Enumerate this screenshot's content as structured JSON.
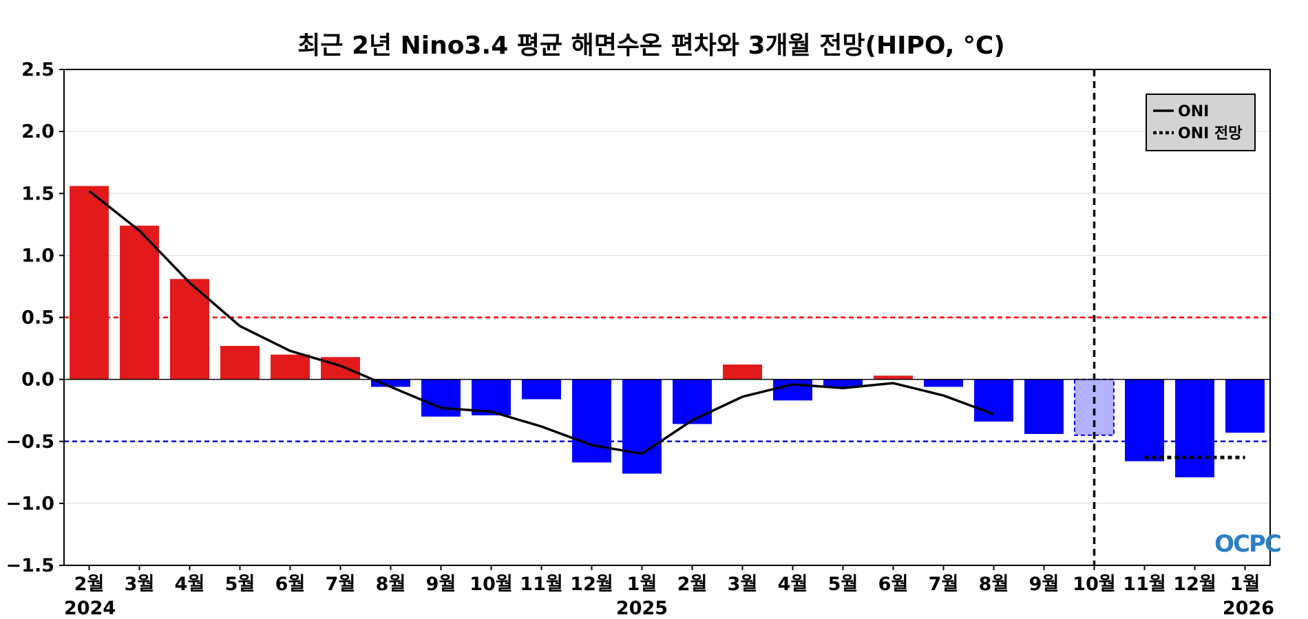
{
  "chart_data": {
    "type": "bar",
    "title": "최근 2년 Nino3.4 평균 해면수온 편차와 3개월 전망(HIPO, °C)",
    "xlabel": "",
    "ylabel": "",
    "ylim": [
      -1.5,
      2.5
    ],
    "yticks": [
      2.5,
      2.0,
      1.5,
      1.0,
      0.5,
      0.0,
      -0.5,
      -1.0,
      -1.5
    ],
    "ytick_labels": [
      "2.5",
      "2.0",
      "1.5",
      "1.0",
      "0.5",
      "0.0",
      "−0.5",
      "−1.0",
      "−1.5"
    ],
    "categories": [
      "2월",
      "3월",
      "4월",
      "5월",
      "6월",
      "7월",
      "8월",
      "9월",
      "10월",
      "11월",
      "12월",
      "1월",
      "2월",
      "3월",
      "4월",
      "5월",
      "6월",
      "7월",
      "8월",
      "9월",
      "10월",
      "11월",
      "12월",
      "1월"
    ],
    "years": [
      {
        "label": "2024",
        "category_index": 0
      },
      {
        "label": "2025",
        "category_index": 11
      },
      {
        "label": "2026",
        "category_index": 23
      }
    ],
    "values": [
      1.56,
      1.24,
      0.81,
      0.27,
      0.2,
      0.18,
      -0.06,
      -0.3,
      -0.29,
      -0.16,
      -0.67,
      -0.76,
      -0.36,
      0.12,
      -0.17,
      -0.06,
      0.03,
      -0.06,
      -0.34,
      -0.44,
      -0.45,
      -0.66,
      -0.79,
      -0.43
    ],
    "highlight_index": 20,
    "oni": {
      "name": "ONI",
      "values": [
        1.52,
        1.2,
        0.78,
        0.43,
        0.23,
        0.11,
        -0.06,
        -0.23,
        -0.26,
        -0.38,
        -0.53,
        -0.6,
        -0.33,
        -0.14,
        -0.04,
        -0.07,
        -0.03,
        -0.13,
        -0.28
      ]
    },
    "oni_forecast": {
      "name": "ONI 전망",
      "start_index": 21,
      "end_index": 23,
      "value": -0.63
    },
    "thresholds": {
      "upper": 0.5,
      "lower": -0.5
    },
    "forecast_divider_index": 20,
    "legend_position": "top-right",
    "grid": true,
    "colors": {
      "positive": "#e31a1c",
      "negative": "#0000ff",
      "highlight": "#b3b3ff",
      "oni_line": "#000000",
      "upper_threshold": "#ff0000",
      "lower_threshold": "#0000cc",
      "legend_bg": "#d3d3d3",
      "grid": "#dddddd"
    }
  },
  "logo": {
    "text": "OCPC"
  }
}
